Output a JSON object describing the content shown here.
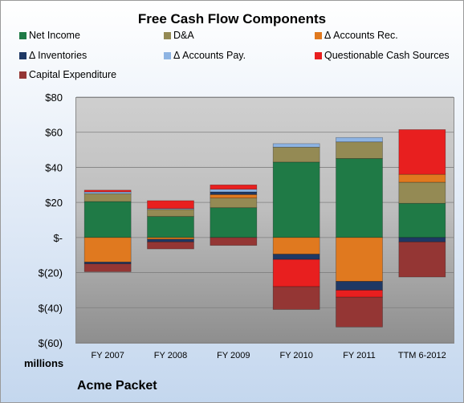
{
  "chart_data": {
    "type": "bar",
    "stacked": true,
    "title": "Free Cash Flow Components",
    "units_label": "millions",
    "company": "Acme Packet",
    "categories": [
      "FY 2007",
      "FY 2008",
      "FY 2009",
      "FY 2010",
      "FY 2011",
      "TTM 6-2012"
    ],
    "ylim": [
      -60,
      80
    ],
    "yticks": [
      80,
      60,
      40,
      20,
      0,
      -20,
      -40,
      -60
    ],
    "ytick_labels": [
      "$80",
      "$60",
      "$40",
      "$20",
      "$-",
      "$(20)",
      "$(40)",
      "$(60)"
    ],
    "grid": true,
    "legend_position": "top",
    "series": [
      {
        "name": "Net Income",
        "color": "#1f7a46",
        "values": [
          20.5,
          12,
          17,
          43,
          45,
          19.5
        ]
      },
      {
        "name": "D&A",
        "color": "#948a54",
        "values": [
          4.5,
          4,
          5.5,
          8.5,
          9.5,
          12
        ]
      },
      {
        "name": "Δ Accounts Rec.",
        "color": "#e0791f",
        "values": [
          -14,
          -1,
          2,
          -9.5,
          -25,
          4.5
        ]
      },
      {
        "name": "Δ Inventories",
        "color": "#1f3864",
        "values": [
          -1,
          -1.5,
          1.5,
          -3,
          -5,
          -2.5
        ]
      },
      {
        "name": "Δ Accounts Pay.",
        "color": "#8eb4e3",
        "values": [
          1,
          0.5,
          1.5,
          2,
          2.5,
          0
        ]
      },
      {
        "name": "Questionable Cash Sources",
        "color": "#e81f1f",
        "values": [
          1,
          4.5,
          2.5,
          -15.5,
          -4,
          25.5
        ]
      },
      {
        "name": "Capital Expenditure",
        "color": "#943634",
        "values": [
          -4.5,
          -4,
          -4.5,
          -13,
          -17,
          -20
        ]
      }
    ]
  }
}
